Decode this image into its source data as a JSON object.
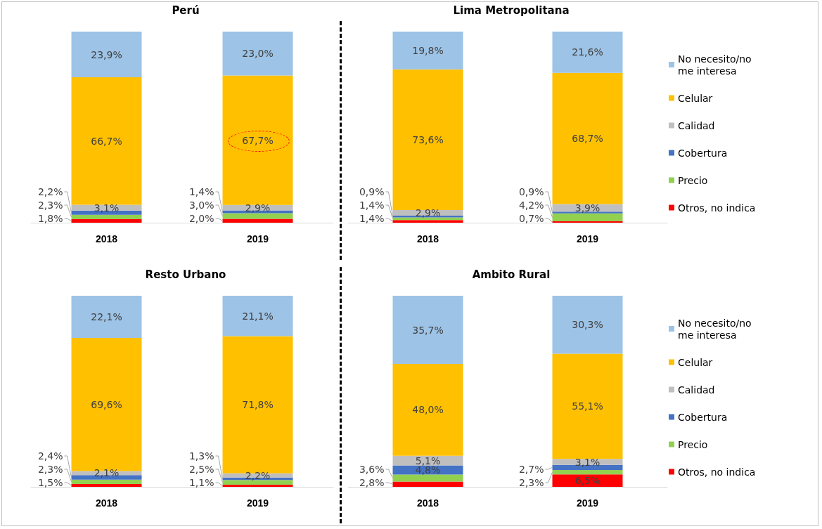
{
  "chart_data": [
    {
      "type": "bar",
      "title": "Perú",
      "categories": [
        "2018",
        "2019"
      ],
      "stacked": true,
      "legend": false,
      "ylim": [
        0,
        100
      ],
      "series": [
        {
          "color": "#ff0000",
          "values": [
            1.8,
            2.0
          ],
          "value_labels": [
            "1,8%",
            "2,0%"
          ]
        },
        {
          "color": "#92d050",
          "values": [
            2.3,
            3.0
          ],
          "value_labels": [
            "2,3%",
            "3,0%"
          ]
        },
        {
          "color": "#4472c4",
          "values": [
            2.2,
            1.4
          ],
          "value_labels": [
            "2,2%",
            "1,4%"
          ]
        },
        {
          "color": "#bfbfbf",
          "values": [
            3.1,
            2.9
          ],
          "value_labels": [
            "3,1%",
            "2,9%"
          ]
        },
        {
          "color": "#ffc000",
          "values": [
            66.7,
            67.7
          ],
          "value_labels": [
            "66,7%",
            "67,7%"
          ]
        },
        {
          "color": "#9dc3e6",
          "values": [
            23.9,
            23.0
          ],
          "value_labels": [
            "23,9%",
            "23,0%"
          ]
        }
      ]
    },
    {
      "type": "bar",
      "title": "Lima Metropolitana",
      "categories": [
        "2018",
        "2019"
      ],
      "stacked": true,
      "legend": "right",
      "ylim": [
        0,
        100
      ],
      "series": [
        {
          "name": "Otros, no indica",
          "color": "#ff0000",
          "values": [
            1.4,
            0.7
          ],
          "value_labels": [
            "1,4%",
            "0,7%"
          ]
        },
        {
          "name": "Precio",
          "color": "#92d050",
          "values": [
            1.4,
            4.2
          ],
          "value_labels": [
            "1,4%",
            "4,2%"
          ]
        },
        {
          "name": "Cobertura",
          "color": "#4472c4",
          "values": [
            0.9,
            0.9
          ],
          "value_labels": [
            "0,9%",
            "0,9%"
          ]
        },
        {
          "name": "Calidad",
          "color": "#bfbfbf",
          "values": [
            2.9,
            3.9
          ],
          "value_labels": [
            "2,9%",
            "3,9%"
          ]
        },
        {
          "name": "Celular",
          "color": "#ffc000",
          "values": [
            73.6,
            68.7
          ],
          "value_labels": [
            "73,6%",
            "68,7%"
          ]
        },
        {
          "name": "No necesito/no me interesa",
          "color": "#9dc3e6",
          "values": [
            19.8,
            21.6
          ],
          "value_labels": [
            "19,8%",
            "21,6%"
          ]
        }
      ]
    },
    {
      "type": "bar",
      "title": "Resto Urbano",
      "categories": [
        "2018",
        "2019"
      ],
      "stacked": true,
      "legend": false,
      "ylim": [
        0,
        100
      ],
      "series": [
        {
          "color": "#ff0000",
          "values": [
            1.5,
            1.1
          ],
          "value_labels": [
            "1,5%",
            "1,1%"
          ]
        },
        {
          "color": "#92d050",
          "values": [
            2.3,
            2.5
          ],
          "value_labels": [
            "2,3%",
            "2,5%"
          ]
        },
        {
          "color": "#4472c4",
          "values": [
            2.4,
            1.3
          ],
          "value_labels": [
            "2,4%",
            "1,3%"
          ]
        },
        {
          "color": "#bfbfbf",
          "values": [
            2.1,
            2.2
          ],
          "value_labels": [
            "2,1%",
            "2,2%"
          ]
        },
        {
          "color": "#ffc000",
          "values": [
            69.6,
            71.8
          ],
          "value_labels": [
            "69,6%",
            "71,8%"
          ]
        },
        {
          "color": "#9dc3e6",
          "values": [
            22.1,
            21.1
          ],
          "value_labels": [
            "22,1%",
            "21,1%"
          ]
        }
      ]
    },
    {
      "type": "bar",
      "title": "Ambito Rural",
      "categories": [
        "2018",
        "2019"
      ],
      "stacked": true,
      "legend": "right",
      "ylim": [
        0,
        100
      ],
      "series": [
        {
          "name": "Otros, no indica",
          "color": "#ff0000",
          "values": [
            2.8,
            6.5
          ],
          "value_labels": [
            "2,8%",
            "6,5%"
          ]
        },
        {
          "name": "Precio",
          "color": "#92d050",
          "values": [
            3.6,
            2.3
          ],
          "value_labels": [
            "3,6%",
            "2,3%"
          ]
        },
        {
          "name": "Cobertura",
          "color": "#4472c4",
          "values": [
            4.8,
            2.7
          ],
          "value_labels": [
            "4,8%",
            "2,7%"
          ]
        },
        {
          "name": "Calidad",
          "color": "#bfbfbf",
          "values": [
            5.1,
            3.1
          ],
          "value_labels": [
            "5,1%",
            "3,1%"
          ]
        },
        {
          "name": "Celular",
          "color": "#ffc000",
          "values": [
            48.0,
            55.1
          ],
          "value_labels": [
            "48,0%",
            "55,1%"
          ]
        },
        {
          "name": "No necesito/no me interesa",
          "color": "#9dc3e6",
          "values": [
            35.7,
            30.3
          ],
          "value_labels": [
            "35,7%",
            "30,3%"
          ]
        }
      ]
    }
  ]
}
